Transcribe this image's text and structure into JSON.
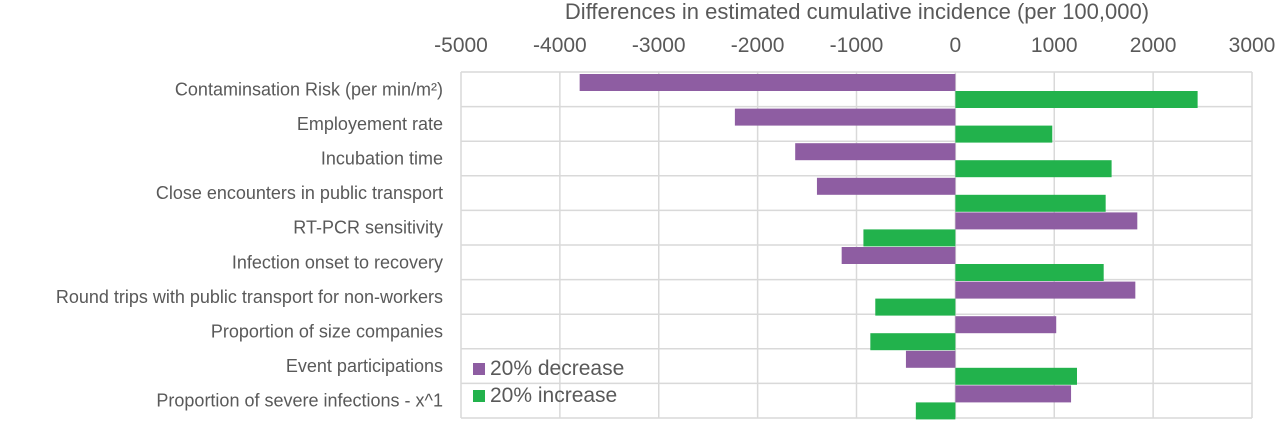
{
  "chart_data": {
    "type": "bar",
    "orientation": "horizontal",
    "title": "",
    "xlabel": "Differences in estimated cumulative incidence (per 100,000)",
    "xlim": [
      -5000,
      3000
    ],
    "xticks": [
      -5000,
      -4000,
      -3000,
      -2000,
      -1000,
      0,
      1000,
      2000,
      3000
    ],
    "grid": true,
    "legend_position": "bottom-left",
    "colors": {
      "decrease": "#8E5DA2",
      "increase": "#22B24C"
    },
    "rows": [
      {
        "label": "Contaminsation Risk (per min/m²)",
        "decrease": -3800,
        "increase": 2450
      },
      {
        "label": "Employement rate",
        "decrease": -2230,
        "increase": 980
      },
      {
        "label": "Incubation time ",
        "decrease": -1620,
        "increase": 1580
      },
      {
        "label": "Close encounters in public transport",
        "decrease": -1400,
        "increase": 1520
      },
      {
        "label": "RT-PCR sensitivity ",
        "decrease": 1840,
        "increase": -930
      },
      {
        "label": "Infection onset to recovery ",
        "decrease": -1150,
        "increase": 1500
      },
      {
        "label": "Round trips with public transport for non-workers",
        "decrease": 1820,
        "increase": -810
      },
      {
        "label": "Proportion of size companies",
        "decrease": 1020,
        "increase": -860
      },
      {
        "label": "Event participations",
        "decrease": -500,
        "increase": 1230
      },
      {
        "label": "Proportion of severe infections - x^1",
        "decrease": 1170,
        "increase": -400
      }
    ],
    "series": [
      {
        "key": "decrease",
        "name": "20% decrease"
      },
      {
        "key": "increase",
        "name": "20% increase"
      }
    ]
  }
}
